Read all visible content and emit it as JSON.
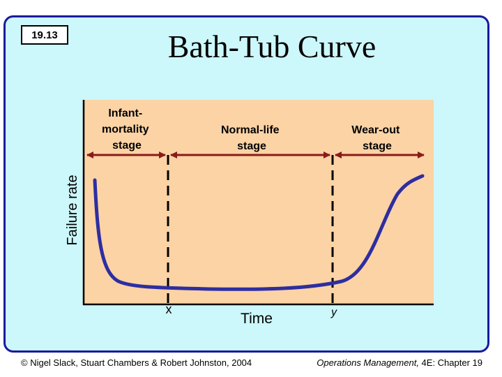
{
  "slide": {
    "number": "19.13",
    "title": "Bath-Tub Curve",
    "footer_left": "© Nigel Slack, Stuart Chambers & Robert Johnston, 2004",
    "footer_right_italic": "Operations Management,",
    "footer_right_rest": " 4E: Chapter 19"
  },
  "diagram": {
    "y_axis_label": "Failure rate",
    "x_axis_label": "Time",
    "marker_x": "x",
    "marker_y": "y",
    "stages": [
      {
        "lines": [
          "Infant-",
          "mortality",
          "stage"
        ]
      },
      {
        "lines": [
          "Normal-life",
          "stage"
        ]
      },
      {
        "lines": [
          "Wear-out",
          "stage"
        ]
      }
    ],
    "colors": {
      "plot_background": "#fbd3a5",
      "curve": "#2e2ea0",
      "arrows": "#8b1a1a",
      "slide_background": "#ccf7fb",
      "slide_border": "#1a1a9c"
    }
  }
}
